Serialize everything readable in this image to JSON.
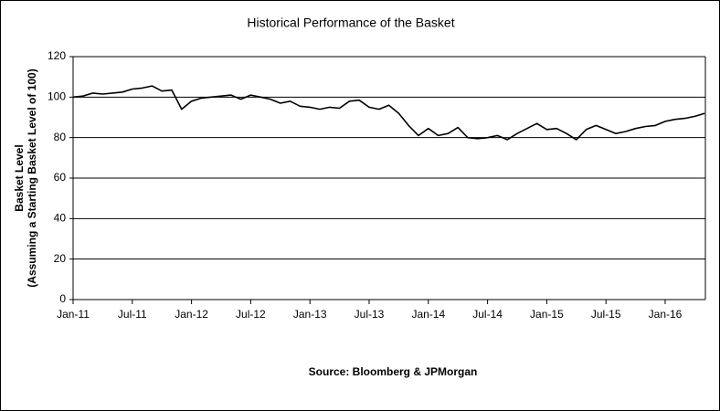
{
  "chart_data": {
    "type": "line",
    "title": "Historical Performance of the Basket",
    "y_label": [
      "Basket Level",
      "(Assuming a Starting Basket Level of 100)"
    ],
    "note": "Source:  Bloomberg & JPMorgan",
    "categories": [
      "Jan-11",
      null,
      null,
      null,
      null,
      null,
      "Jul-11",
      null,
      null,
      null,
      null,
      null,
      "Jan-12",
      null,
      null,
      null,
      null,
      null,
      "Jul-12",
      null,
      null,
      null,
      null,
      null,
      "Jan-13",
      null,
      null,
      null,
      null,
      null,
      "Jul-13",
      null,
      null,
      null,
      null,
      null,
      "Jan-14",
      null,
      null,
      null,
      null,
      null,
      "Jul-14",
      null,
      null,
      null,
      null,
      null,
      "Jan-15",
      null,
      null,
      null,
      null,
      null,
      "Jul-15",
      null,
      null,
      null,
      null,
      null,
      "Jan-16",
      null,
      null,
      null,
      null
    ],
    "values": [
      100,
      100.5,
      102,
      101.5,
      102,
      102.5,
      104,
      104.5,
      105.5,
      103,
      103.5,
      94,
      98,
      99.5,
      100,
      100.5,
      101,
      99,
      101,
      100,
      99,
      97,
      98,
      95.5,
      95,
      94,
      95,
      94.5,
      98,
      98.5,
      95,
      94,
      96,
      92,
      86,
      81,
      84.5,
      81,
      82,
      85,
      80,
      79.5,
      80,
      81,
      79,
      82,
      84.5,
      87,
      84,
      84.5,
      82,
      79,
      84,
      86,
      84,
      82,
      83,
      84.5,
      85.5,
      86,
      88,
      89,
      89.5,
      90.5,
      92
    ],
    "color": "#000000",
    "ylim": [
      0,
      120
    ],
    "yticks": [
      0,
      20,
      40,
      60,
      80,
      100,
      120
    ],
    "grid": true
  }
}
